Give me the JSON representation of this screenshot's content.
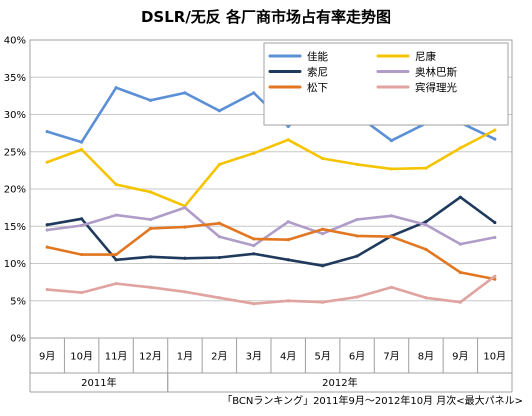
{
  "chart_data": {
    "type": "line",
    "title": "DSLR/无反 各厂商市场占有率走势图",
    "x": [
      "9月",
      "10月",
      "11月",
      "12月",
      "1月",
      "2月",
      "3月",
      "4月",
      "5月",
      "6月",
      "7月",
      "8月",
      "9月",
      "10月"
    ],
    "year_groups": [
      {
        "label": "2011年",
        "start": 0,
        "end": 3
      },
      {
        "label": "2012年",
        "start": 4,
        "end": 13
      }
    ],
    "yticks": [
      "0%",
      "5%",
      "10%",
      "15%",
      "20%",
      "25%",
      "30%",
      "35%",
      "40%"
    ],
    "ylim": [
      0,
      40
    ],
    "grid": true,
    "legend_position": "top-right",
    "series": [
      {
        "name": "佳能",
        "color": "#5b8fd6",
        "values": [
          27.7,
          26.3,
          33.6,
          31.9,
          32.9,
          30.5,
          32.9,
          28.4,
          32.1,
          29.9,
          26.5,
          28.8,
          28.9,
          26.7
        ]
      },
      {
        "name": "尼康",
        "color": "#f5c400",
        "values": [
          23.6,
          25.3,
          20.6,
          19.6,
          17.7,
          23.3,
          24.8,
          26.6,
          24.1,
          23.3,
          22.7,
          22.8,
          25.5,
          27.9
        ]
      },
      {
        "name": "索尼",
        "color": "#1f3a5c",
        "values": [
          15.2,
          16.0,
          10.5,
          10.9,
          10.7,
          10.8,
          11.3,
          10.5,
          9.7,
          11.0,
          13.7,
          15.6,
          18.9,
          15.5
        ]
      },
      {
        "name": "奥林巴斯",
        "color": "#b09cc8",
        "values": [
          14.5,
          15.1,
          16.5,
          15.9,
          17.5,
          13.6,
          12.4,
          15.6,
          14.0,
          15.9,
          16.4,
          15.2,
          12.6,
          13.5
        ]
      },
      {
        "name": "松下",
        "color": "#e27621",
        "values": [
          12.2,
          11.2,
          11.2,
          14.7,
          14.9,
          15.4,
          13.3,
          13.2,
          14.6,
          13.7,
          13.6,
          11.9,
          8.8,
          7.9
        ]
      },
      {
        "name": "宾得理光",
        "color": "#e0a3a0",
        "values": [
          6.5,
          6.1,
          7.3,
          6.8,
          6.2,
          5.4,
          4.6,
          5.0,
          4.8,
          5.5,
          6.8,
          5.4,
          4.8,
          8.3
        ]
      }
    ]
  },
  "source_note": "「BCNランキング」2011年9月～2012年10月 月次<最大パネル>"
}
